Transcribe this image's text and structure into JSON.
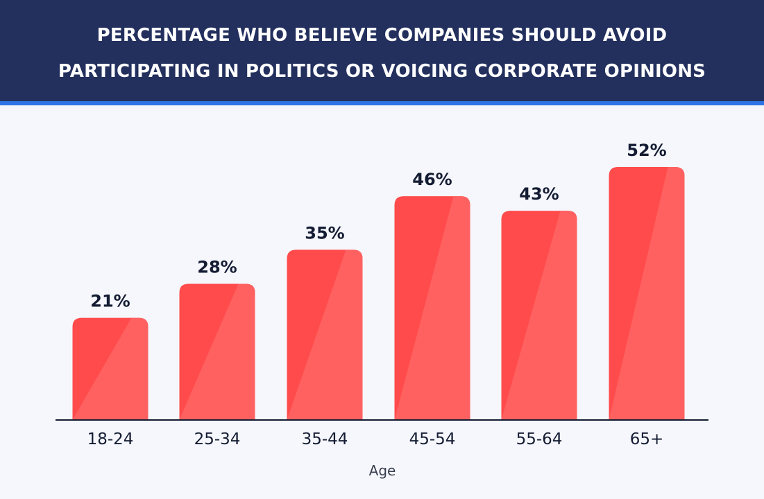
{
  "chart_data": {
    "type": "bar",
    "title_lines": [
      "PERCENTAGE WHO BELIEVE COMPANIES SHOULD AVOID",
      "PARTICIPATING IN POLITICS OR VOICING CORPORATE OPINIONS"
    ],
    "categories": [
      "18-24",
      "25-34",
      "35-44",
      "45-54",
      "55-64",
      "65+"
    ],
    "values": [
      21,
      28,
      35,
      46,
      43,
      52
    ],
    "value_labels": [
      "21%",
      "28%",
      "35%",
      "46%",
      "43%",
      "52%"
    ],
    "xlabel": "Age",
    "ylabel": "",
    "ylim": [
      0,
      52
    ],
    "grid": false,
    "colors": {
      "header_bg": "#23305e",
      "header_accent": "#2f74e6",
      "bar_dark": "#ff4b4b",
      "bar_light": "#ff6161",
      "background": "#f5f7fc",
      "text": "#141c33"
    }
  }
}
